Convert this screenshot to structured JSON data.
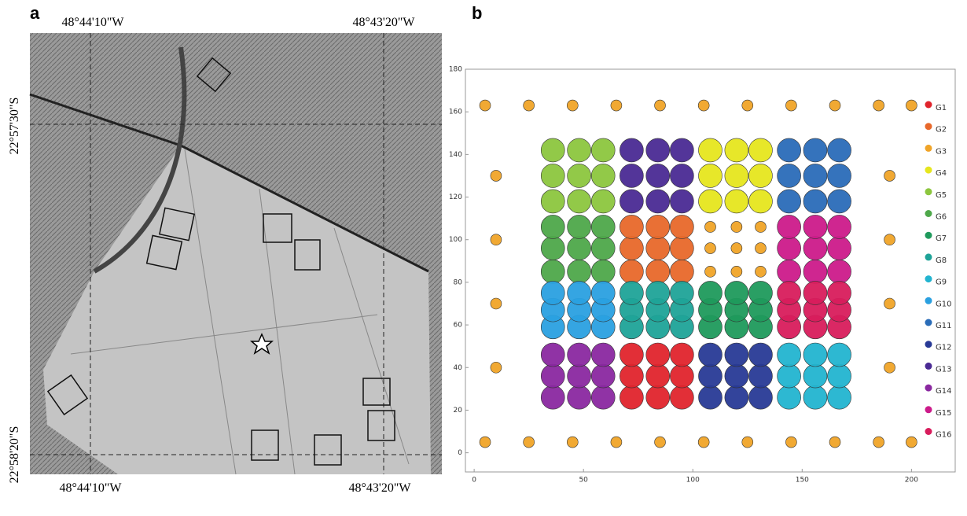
{
  "panels": {
    "a": "a",
    "b": "b"
  },
  "map": {
    "top_labels": [
      "48°44'10\"W",
      "48°43'20\"W"
    ],
    "bottom_labels": [
      "48°44'10\"W",
      "48°43'20\"W"
    ],
    "left_labels": [
      "22°57'30\"S",
      "22°58'20\"S"
    ]
  },
  "chart_data": {
    "type": "scatter",
    "xlim": [
      -4,
      220
    ],
    "ylim": [
      -9,
      180
    ],
    "xticks": [
      0,
      50,
      100,
      150,
      200
    ],
    "yticks": [
      0,
      20,
      40,
      60,
      80,
      100,
      120,
      140,
      160,
      180
    ],
    "grid": false,
    "legend": "right",
    "series": [
      {
        "name": "G1",
        "color": "#e0242c",
        "x": [
          72,
          84,
          95,
          72,
          84,
          95,
          72,
          84,
          95
        ],
        "values": [
          26,
          26,
          26,
          36,
          36,
          36,
          46,
          46,
          46
        ]
      },
      {
        "name": "G2",
        "color": "#e8682a",
        "x": [
          72,
          84,
          95,
          72,
          84,
          95,
          72,
          84,
          95
        ],
        "values": [
          85,
          85,
          85,
          96,
          96,
          96,
          106,
          106,
          106
        ]
      },
      {
        "name": "G3",
        "color": "#f0a428",
        "x": [
          5,
          25,
          45,
          65,
          85,
          105,
          125,
          145,
          165,
          185,
          200,
          5,
          25,
          45,
          65,
          85,
          105,
          125,
          145,
          165,
          185,
          200,
          10,
          10,
          10,
          10,
          190,
          190,
          190,
          190,
          108,
          120,
          131,
          108,
          120,
          131,
          108,
          120,
          131
        ],
        "values": [
          163,
          163,
          163,
          163,
          163,
          163,
          163,
          163,
          163,
          163,
          163,
          5,
          5,
          5,
          5,
          5,
          5,
          5,
          5,
          5,
          5,
          5,
          40,
          70,
          100,
          130,
          40,
          70,
          100,
          130,
          85,
          85,
          85,
          96,
          96,
          96,
          106,
          106,
          106
        ]
      },
      {
        "name": "G4",
        "color": "#e6e61e",
        "x": [
          108,
          120,
          131,
          108,
          120,
          131,
          108,
          120,
          131
        ],
        "values": [
          118,
          118,
          118,
          130,
          130,
          130,
          142,
          142,
          142
        ]
      },
      {
        "name": "G5",
        "color": "#8cc63e",
        "x": [
          36,
          48,
          59,
          36,
          48,
          59,
          36,
          48,
          59
        ],
        "values": [
          118,
          118,
          118,
          130,
          130,
          130,
          142,
          142,
          142
        ]
      },
      {
        "name": "G6",
        "color": "#4ea84a",
        "x": [
          36,
          48,
          59,
          36,
          48,
          59,
          36,
          48,
          59
        ],
        "values": [
          85,
          85,
          85,
          96,
          96,
          96,
          106,
          106,
          106
        ]
      },
      {
        "name": "G7",
        "color": "#1f9a5c",
        "x": [
          108,
          120,
          131,
          108,
          120,
          131,
          108,
          120,
          131
        ],
        "values": [
          59,
          59,
          59,
          67,
          67,
          67,
          75,
          75,
          75
        ]
      },
      {
        "name": "G8",
        "color": "#1fa398",
        "x": [
          72,
          84,
          95,
          72,
          84,
          95,
          72,
          84,
          95
        ],
        "values": [
          59,
          59,
          59,
          67,
          67,
          67,
          75,
          75,
          75
        ]
      },
      {
        "name": "G9",
        "color": "#22b4d0",
        "x": [
          144,
          156,
          167,
          144,
          156,
          167,
          144,
          156,
          167
        ],
        "values": [
          26,
          26,
          26,
          36,
          36,
          36,
          46,
          46,
          46
        ]
      },
      {
        "name": "G10",
        "color": "#2aa0e0",
        "x": [
          36,
          48,
          59,
          36,
          48,
          59,
          36,
          48,
          59
        ],
        "values": [
          59,
          59,
          59,
          67,
          67,
          67,
          75,
          75,
          75
        ]
      },
      {
        "name": "G11",
        "color": "#2a6cb8",
        "x": [
          144,
          156,
          167,
          144,
          156,
          167,
          144,
          156,
          167
        ],
        "values": [
          118,
          118,
          118,
          130,
          130,
          130,
          142,
          142,
          142
        ]
      },
      {
        "name": "G12",
        "color": "#283a96",
        "x": [
          108,
          120,
          131,
          108,
          120,
          131,
          108,
          120,
          131
        ],
        "values": [
          26,
          26,
          26,
          36,
          36,
          36,
          46,
          46,
          46
        ]
      },
      {
        "name": "G13",
        "color": "#4a2a94",
        "x": [
          72,
          84,
          95,
          72,
          84,
          95,
          72,
          84,
          95
        ],
        "values": [
          118,
          118,
          118,
          130,
          130,
          130,
          142,
          142,
          142
        ]
      },
      {
        "name": "G14",
        "color": "#8a28a0",
        "x": [
          36,
          48,
          59,
          36,
          48,
          59,
          36,
          48,
          59
        ],
        "values": [
          26,
          26,
          26,
          36,
          36,
          36,
          46,
          46,
          46
        ]
      },
      {
        "name": "G15",
        "color": "#cc1a8a",
        "x": [
          144,
          156,
          167,
          144,
          156,
          167,
          144,
          156,
          167
        ],
        "values": [
          85,
          85,
          85,
          96,
          96,
          96,
          106,
          106,
          106
        ]
      },
      {
        "name": "G16",
        "color": "#d81c5c",
        "x": [
          144,
          156,
          167,
          144,
          156,
          167,
          144,
          156,
          167
        ],
        "values": [
          59,
          59,
          59,
          67,
          67,
          67,
          75,
          75,
          75
        ]
      }
    ]
  }
}
